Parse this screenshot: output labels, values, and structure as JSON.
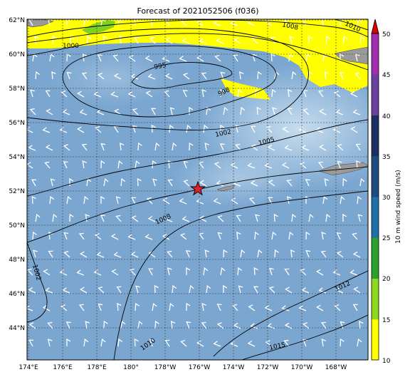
{
  "title": "Forecast of 2021052506 (f036)",
  "map": {
    "lat_labels": [
      "62°N",
      "60°N",
      "58°N",
      "56°N",
      "54°N",
      "52°N",
      "50°N",
      "48°N",
      "46°N",
      "44°N"
    ],
    "lon_labels": [
      "174°E",
      "176°E",
      "178°E",
      "180°",
      "178°W",
      "176°W",
      "174°W",
      "172°W",
      "170°W",
      "168°W"
    ],
    "isobar_labels": [
      "1000",
      "995",
      "998",
      "1002",
      "1005",
      "1008",
      "1010",
      "1008",
      "1002",
      "1010",
      "1012",
      "1015"
    ],
    "marker": {
      "type": "red-star",
      "lat": 52.1,
      "lon": -176.1
    },
    "colors": {
      "ocean": "#7aa6d0",
      "ocean_light": "#b7d1e8",
      "precip": "#ffff00",
      "land": "#9a9a9a",
      "green_patch": "#7fd11f"
    }
  },
  "colorbar": {
    "label": "10 m wind speed (m/s)",
    "ticks": [
      "50",
      "45",
      "40",
      "35",
      "30",
      "25",
      "20",
      "15",
      "10"
    ],
    "colors": [
      "#ffff00",
      "#8fd820",
      "#2ca02c",
      "#1a8a1a",
      "#2f6fa8",
      "#1f4c80",
      "#1a2f62",
      "#6a3fa0",
      "#a030b0",
      "#dd0000"
    ]
  }
}
